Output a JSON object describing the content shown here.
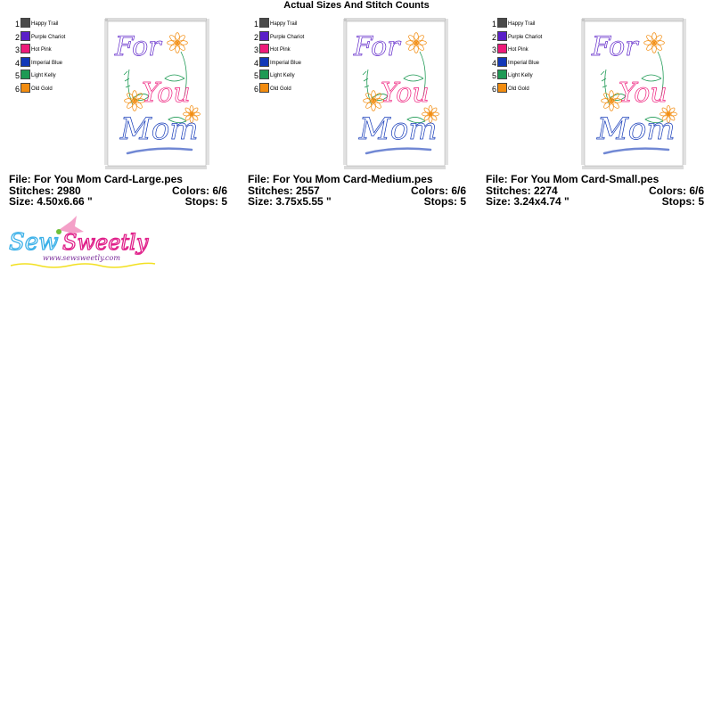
{
  "title": "Actual Sizes And Stitch Counts",
  "palette": [
    {
      "num": "1",
      "name": "Happy Trail",
      "color": "#4a4a4a"
    },
    {
      "num": "2",
      "name": "Purple Chariot",
      "color": "#5a1fc8"
    },
    {
      "num": "3",
      "name": "Hot Pink",
      "color": "#ee1a7a"
    },
    {
      "num": "4",
      "name": "Imperial Blue",
      "color": "#1238b8"
    },
    {
      "num": "5",
      "name": "Light Kelly",
      "color": "#1f9a55"
    },
    {
      "num": "6",
      "name": "Old Gold",
      "color": "#f28c0f"
    }
  ],
  "design_text": [
    "For",
    "You",
    "Mom"
  ],
  "panels": [
    {
      "file": "File: For You Mom Card-Large.pes",
      "stitches": "Stitches: 2980",
      "colors": "Colors: 6/6",
      "size": "Size: 4.50x6.66 \"",
      "stops": "Stops: 5"
    },
    {
      "file": "File: For You Mom Card-Medium.pes",
      "stitches": "Stitches: 2557",
      "colors": "Colors: 6/6",
      "size": "Size: 3.75x5.55 \"",
      "stops": "Stops: 5"
    },
    {
      "file": "File: For You Mom Card-Small.pes",
      "stitches": "Stitches: 2274",
      "colors": "Colors: 6/6",
      "size": "Size: 3.24x4.74 \"",
      "stops": "Stops: 5"
    }
  ],
  "logo": {
    "name": "Sew Sweetly",
    "url": "www.sewsweetly.com"
  }
}
